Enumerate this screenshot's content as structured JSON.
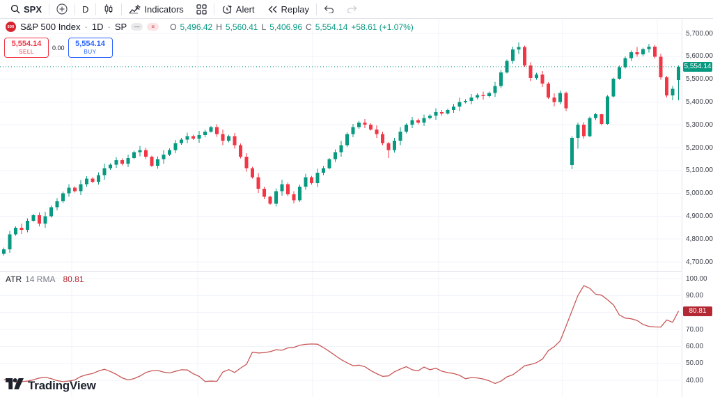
{
  "toolbar": {
    "symbol": "SPX",
    "interval": "D",
    "indicators_label": "Indicators",
    "alert_label": "Alert",
    "replay_label": "Replay"
  },
  "legend": {
    "logo_text": "500",
    "symbol_title": "S&P 500 Index",
    "dot": "·",
    "interval": "1D",
    "exchange": "SP",
    "eye_glyph": "—",
    "menu_glyph": "≡",
    "ohlc": {
      "o_label": "O",
      "o": "5,496.42",
      "h_label": "H",
      "h": "5,560.41",
      "l_label": "L",
      "l": "5,406.96",
      "c_label": "C",
      "c": "5,554.14",
      "change": "+58.61 (+1.07%)"
    }
  },
  "trade_panel": {
    "sell_price": "5,554.14",
    "sell_label": "SELL",
    "spread": "0.00",
    "buy_price": "5,554.14",
    "buy_label": "BUY"
  },
  "indicator_legend": {
    "name": "ATR",
    "params": "14 RMA",
    "value": "80.81"
  },
  "price_axis": {
    "main_ticks": [
      {
        "v": 5700,
        "label": "5,700.00"
      },
      {
        "v": 5600,
        "label": "5,600.00"
      },
      {
        "v": 5500,
        "label": "5,500.00"
      },
      {
        "v": 5400,
        "label": "5,400.00"
      },
      {
        "v": 5300,
        "label": "5,300.00"
      },
      {
        "v": 5200,
        "label": "5,200.00"
      },
      {
        "v": 5100,
        "label": "5,100.00"
      },
      {
        "v": 5000,
        "label": "5,000.00"
      },
      {
        "v": 4900,
        "label": "4,900.00"
      },
      {
        "v": 4800,
        "label": "4,800.00"
      },
      {
        "v": 4700,
        "label": "4,700.00"
      }
    ],
    "atr_ticks": [
      {
        "v": 100,
        "label": "100.00"
      },
      {
        "v": 90,
        "label": "90.00"
      },
      {
        "v": 70,
        "label": "70.00"
      },
      {
        "v": 60,
        "label": "60.00"
      },
      {
        "v": 50,
        "label": "50.00"
      },
      {
        "v": 40,
        "label": "40.00"
      }
    ],
    "last_price_value": 5554.14,
    "last_price_label": "5,554.14",
    "atr_value": 80.81,
    "atr_value_label": "80.81"
  },
  "watermark": "TradingView",
  "colors": {
    "up": "#089981",
    "down": "#f23645",
    "atr_line": "#c75757",
    "atr_label_bg": "#b22833",
    "last_price_bg": "#089981",
    "sell": "#f23645",
    "buy": "#2962ff",
    "grid": "#f0f3fa",
    "border": "#e0e3eb",
    "text": "#131722",
    "muted": "#787b86"
  },
  "chart_data": [
    {
      "type": "candlestick",
      "title": "S&P 500 Index · 1D · SP",
      "ylabel": "Price",
      "ylim": [
        4700,
        5700
      ],
      "last_close": 5554.14,
      "candles": [
        [
          4735,
          4763,
          4727,
          4755
        ],
        [
          4755,
          4835,
          4740,
          4820
        ],
        [
          4820,
          4856,
          4814,
          4850
        ],
        [
          4850,
          4868,
          4822,
          4840
        ],
        [
          4840,
          4890,
          4830,
          4880
        ],
        [
          4880,
          4910,
          4875,
          4905
        ],
        [
          4905,
          4917,
          4855,
          4868
        ],
        [
          4868,
          4920,
          4850,
          4900
        ],
        [
          4900,
          4947,
          4893,
          4940
        ],
        [
          4940,
          4979,
          4926,
          4965
        ],
        [
          4965,
          5008,
          4957,
          5000
        ],
        [
          5000,
          5040,
          4985,
          5025
        ],
        [
          5025,
          5031,
          5004,
          5010
        ],
        [
          5010,
          5058,
          4992,
          5040
        ],
        [
          5040,
          5075,
          5030,
          5065
        ],
        [
          5065,
          5070,
          5045,
          5050
        ],
        [
          5050,
          5092,
          5038,
          5080
        ],
        [
          5080,
          5130,
          5060,
          5110
        ],
        [
          5110,
          5132,
          5103,
          5125
        ],
        [
          5125,
          5159,
          5111,
          5145
        ],
        [
          5145,
          5153,
          5122,
          5130
        ],
        [
          5130,
          5170,
          5115,
          5155
        ],
        [
          5155,
          5186,
          5149,
          5180
        ],
        [
          5180,
          5208,
          5162,
          5190
        ],
        [
          5190,
          5200,
          5150,
          5160
        ],
        [
          5160,
          5165,
          5115,
          5120
        ],
        [
          5120,
          5162,
          5108,
          5150
        ],
        [
          5150,
          5190,
          5130,
          5170
        ],
        [
          5170,
          5197,
          5163,
          5190
        ],
        [
          5190,
          5234,
          5176,
          5220
        ],
        [
          5220,
          5243,
          5212,
          5235
        ],
        [
          5235,
          5265,
          5220,
          5250
        ],
        [
          5250,
          5256,
          5234,
          5240
        ],
        [
          5240,
          5273,
          5222,
          5255
        ],
        [
          5255,
          5280,
          5245,
          5270
        ],
        [
          5270,
          5295,
          5265,
          5290
        ],
        [
          5290,
          5302,
          5248,
          5260
        ],
        [
          5260,
          5280,
          5210,
          5230
        ],
        [
          5230,
          5257,
          5223,
          5250
        ],
        [
          5250,
          5264,
          5196,
          5210
        ],
        [
          5210,
          5218,
          5152,
          5160
        ],
        [
          5160,
          5175,
          5095,
          5110
        ],
        [
          5110,
          5116,
          5064,
          5070
        ],
        [
          5070,
          5088,
          5002,
          5020
        ],
        [
          5020,
          5030,
          4975,
          4985
        ],
        [
          4985,
          4990,
          4950,
          4955
        ],
        [
          4955,
          5022,
          4943,
          5010
        ],
        [
          5010,
          5060,
          4990,
          5040
        ],
        [
          5040,
          5047,
          4988,
          4995
        ],
        [
          4995,
          5009,
          4956,
          4970
        ],
        [
          4970,
          5038,
          4962,
          5030
        ],
        [
          5030,
          5085,
          5015,
          5070
        ],
        [
          5070,
          5076,
          5039,
          5045
        ],
        [
          5045,
          5108,
          5027,
          5090
        ],
        [
          5090,
          5120,
          5080,
          5110
        ],
        [
          5110,
          5155,
          5105,
          5150
        ],
        [
          5150,
          5192,
          5138,
          5180
        ],
        [
          5180,
          5230,
          5160,
          5210
        ],
        [
          5210,
          5267,
          5203,
          5260
        ],
        [
          5260,
          5304,
          5246,
          5290
        ],
        [
          5290,
          5318,
          5282,
          5310
        ],
        [
          5310,
          5325,
          5285,
          5300
        ],
        [
          5300,
          5306,
          5274,
          5280
        ],
        [
          5280,
          5298,
          5242,
          5260
        ],
        [
          5260,
          5270,
          5210,
          5220
        ],
        [
          5220,
          5225,
          5155,
          5190
        ],
        [
          5190,
          5242,
          5178,
          5230
        ],
        [
          5230,
          5290,
          5210,
          5270
        ],
        [
          5270,
          5307,
          5263,
          5300
        ],
        [
          5300,
          5334,
          5286,
          5320
        ],
        [
          5320,
          5328,
          5302,
          5310
        ],
        [
          5310,
          5345,
          5295,
          5330
        ],
        [
          5330,
          5346,
          5324,
          5340
        ],
        [
          5340,
          5373,
          5322,
          5355
        ],
        [
          5355,
          5365,
          5340,
          5350
        ],
        [
          5350,
          5370,
          5345,
          5365
        ],
        [
          5365,
          5392,
          5353,
          5380
        ],
        [
          5380,
          5420,
          5360,
          5400
        ],
        [
          5400,
          5412,
          5393,
          5405
        ],
        [
          5405,
          5434,
          5391,
          5420
        ],
        [
          5420,
          5438,
          5412,
          5430
        ],
        [
          5430,
          5445,
          5410,
          5425
        ],
        [
          5425,
          5446,
          5419,
          5440
        ],
        [
          5440,
          5488,
          5422,
          5470
        ],
        [
          5470,
          5540,
          5460,
          5530
        ],
        [
          5530,
          5585,
          5525,
          5580
        ],
        [
          5580,
          5642,
          5568,
          5630
        ],
        [
          5630,
          5660,
          5610,
          5640
        ],
        [
          5640,
          5647,
          5553,
          5560
        ],
        [
          5560,
          5574,
          5491,
          5505
        ],
        [
          5505,
          5528,
          5497,
          5520
        ],
        [
          5520,
          5535,
          5465,
          5480
        ],
        [
          5480,
          5486,
          5414,
          5420
        ],
        [
          5420,
          5438,
          5382,
          5400
        ],
        [
          5400,
          5450,
          5390,
          5440
        ],
        [
          5440,
          5446,
          5360,
          5372
        ],
        [
          5124,
          5250,
          5106,
          5242
        ],
        [
          5242,
          5310,
          5196,
          5300
        ],
        [
          5300,
          5312,
          5240,
          5250
        ],
        [
          5250,
          5336,
          5246,
          5330
        ],
        [
          5330,
          5352,
          5320,
          5346
        ],
        [
          5346,
          5348,
          5298,
          5304
        ],
        [
          5304,
          5430,
          5300,
          5424
        ],
        [
          5424,
          5506,
          5420,
          5502
        ],
        [
          5502,
          5560,
          5498,
          5552
        ],
        [
          5552,
          5600,
          5546,
          5592
        ],
        [
          5592,
          5625,
          5580,
          5618
        ],
        [
          5618,
          5640,
          5598,
          5608
        ],
        [
          5608,
          5638,
          5600,
          5632
        ],
        [
          5632,
          5655,
          5616,
          5642
        ],
        [
          5642,
          5650,
          5590,
          5598
        ],
        [
          5598,
          5612,
          5498,
          5508
        ],
        [
          5508,
          5514,
          5420,
          5428
        ],
        [
          5428,
          5470,
          5408,
          5458
        ],
        [
          5496.42,
          5560.41,
          5406.96,
          5554.14
        ]
      ]
    },
    {
      "type": "line",
      "title": "ATR 14 RMA",
      "ylim": [
        40,
        100
      ],
      "last_value": 80.81,
      "values": [
        40.4,
        40.2,
        38.9,
        39.2,
        39.5,
        40.3,
        41.3,
        41.8,
        41.0,
        39.8,
        39.2,
        39.6,
        40.2,
        42.2,
        43.3,
        44.0,
        45.5,
        46.5,
        45.2,
        43.5,
        41.4,
        40.2,
        41.0,
        42.5,
        44.6,
        45.6,
        45.8,
        44.8,
        44.3,
        45.3,
        46.2,
        46.1,
        43.9,
        42.3,
        39.3,
        39.5,
        39.4,
        44.9,
        46.3,
        44.6,
        47.2,
        49.4,
        56.6,
        56.1,
        56.3,
        56.9,
        58.0,
        57.7,
        59.1,
        59.4,
        60.7,
        61.2,
        61.4,
        61.3,
        59.3,
        57.0,
        54.6,
        52.2,
        50.3,
        48.6,
        48.9,
        48.0,
        45.7,
        43.9,
        42.3,
        42.6,
        45.0,
        46.6,
        48.0,
        46.2,
        45.6,
        47.8,
        46.2,
        47.1,
        45.4,
        44.5,
        44.0,
        42.9,
        40.9,
        41.6,
        41.4,
        40.8,
        39.7,
        38.1,
        39.5,
        42.0,
        43.3,
        45.8,
        48.6,
        49.3,
        50.4,
        52.5,
        57.5,
        59.8,
        63.2,
        72.0,
        81.0,
        90.0,
        95.8,
        94.3,
        90.8,
        90.2,
        87.5,
        84.5,
        78.5,
        76.7,
        76.3,
        75.3,
        72.9,
        71.8,
        71.5,
        71.4,
        75.6,
        74.2,
        80.81
      ]
    }
  ]
}
